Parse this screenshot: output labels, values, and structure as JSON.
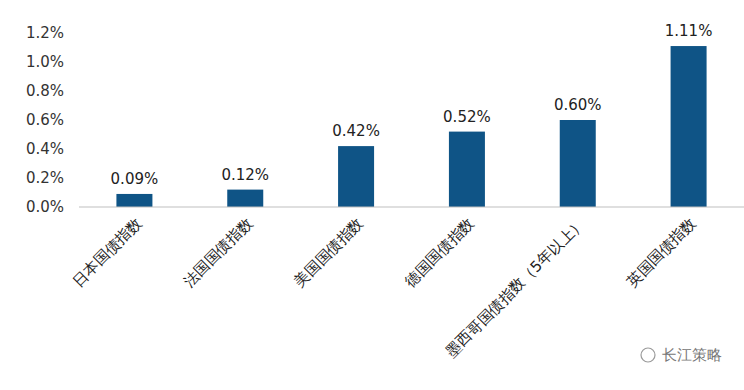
{
  "chart_data": {
    "type": "bar",
    "categories": [
      "日本国债指数",
      "法国国债指数",
      "美国国债指数",
      "德国国债指数",
      "墨西哥国债指数（5年以上）",
      "英国国债指数"
    ],
    "values": [
      0.09,
      0.12,
      0.42,
      0.52,
      0.6,
      1.11
    ],
    "value_labels": [
      "0.09%",
      "0.12%",
      "0.42%",
      "0.52%",
      "0.60%",
      "1.11%"
    ],
    "color": "#0f5486",
    "ylim": [
      0,
      1.2
    ],
    "yticks": [
      {
        "value": 0,
        "label": "0.0%"
      },
      {
        "value": 0.2,
        "label": "0.2%"
      },
      {
        "value": 0.4,
        "label": "0.4%"
      },
      {
        "value": 0.6,
        "label": "0.6%"
      },
      {
        "value": 0.8,
        "label": "0.8%"
      },
      {
        "value": 1.0,
        "label": "1.0%"
      },
      {
        "value": 1.2,
        "label": "1.2%"
      }
    ],
    "grid": false,
    "data_labels": true,
    "annotations": [
      "长江策略"
    ]
  }
}
